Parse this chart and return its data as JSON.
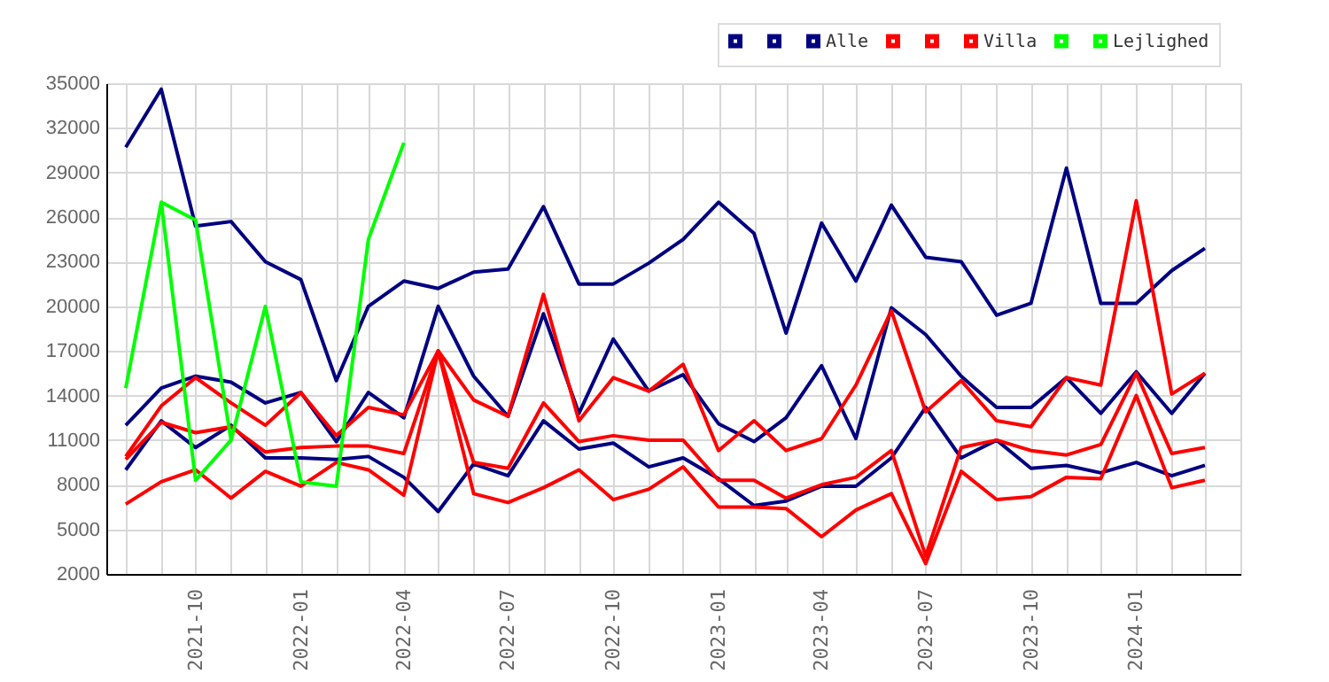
{
  "chart_data": {
    "type": "line",
    "x": [
      "2021-08",
      "2021-09",
      "2021-10",
      "2021-11",
      "2021-12",
      "2022-01",
      "2022-02",
      "2022-03",
      "2022-04",
      "2022-05",
      "2022-06",
      "2022-07",
      "2022-08",
      "2022-09",
      "2022-10",
      "2022-11",
      "2022-12",
      "2023-01",
      "2023-02",
      "2023-03",
      "2023-04",
      "2023-05",
      "2023-06",
      "2023-07",
      "2023-08",
      "2023-09",
      "2023-10",
      "2023-11",
      "2023-12",
      "2024-01",
      "2024-02",
      "2024-03"
    ],
    "xlim": [
      "2021-07-15",
      "2024-04-01"
    ],
    "xticks": [
      {
        "value": "2021-08",
        "label": null
      },
      {
        "value": "2021-09",
        "label": null
      },
      "2021-10",
      {
        "value": "2021-11",
        "label": null
      },
      {
        "value": "2021-12",
        "label": null
      },
      "2022-01",
      {
        "value": "2022-02",
        "label": null
      },
      {
        "value": "2022-03",
        "label": null
      },
      "2022-04",
      {
        "value": "2022-05",
        "label": null
      },
      {
        "value": "2022-06",
        "label": null
      },
      "2022-07",
      {
        "value": "2022-08",
        "label": null
      },
      {
        "value": "2022-09",
        "label": null
      },
      "2022-10",
      {
        "value": "2022-11",
        "label": null
      },
      {
        "value": "2022-12",
        "label": null
      },
      "2023-01",
      {
        "value": "2023-02",
        "label": null
      },
      {
        "value": "2023-03",
        "label": null
      },
      "2023-04",
      {
        "value": "2023-05",
        "label": null
      },
      {
        "value": "2023-06",
        "label": null
      },
      "2023-07",
      {
        "value": "2023-08",
        "label": null
      },
      {
        "value": "2023-09",
        "label": null
      },
      "2023-10",
      {
        "value": "2023-11",
        "label": null
      },
      {
        "value": "2023-12",
        "label": null
      },
      "2024-01",
      {
        "value": "2024-02",
        "label": null
      },
      {
        "value": "2024-03",
        "label": null
      }
    ],
    "ylim": [
      2000,
      35000
    ],
    "yticks": [
      2000,
      5000,
      8000,
      11000,
      14000,
      17000,
      20000,
      23000,
      26000,
      29000,
      32000,
      35000
    ],
    "grid": true,
    "legend": "top right",
    "marker": "none",
    "line_style": "solid",
    "series": [
      {
        "color": "#000080",
        "values": [
          30700,
          34600,
          25400,
          25700,
          23000,
          21800,
          15000,
          20000,
          21700,
          21200,
          22300,
          22500,
          26700,
          21500,
          21500,
          22900,
          24500,
          27000,
          24900,
          18200,
          25600,
          21700,
          26800,
          23300,
          23000,
          19400,
          20200,
          29300,
          20200,
          20200,
          22400,
          23900
        ]
      },
      {
        "color": "#000080",
        "values": [
          12000,
          14500,
          15300,
          14900,
          13500,
          14200,
          10900,
          14200,
          12500,
          20000,
          15300,
          12600,
          19500,
          12800,
          17800,
          14300,
          15400,
          12100,
          10900,
          12500,
          16000,
          11100,
          19900,
          18100,
          15300,
          13200,
          13200,
          15200,
          12800,
          15600,
          12800,
          15500
        ]
      },
      {
        "name": "Alle",
        "color": "#000080",
        "values": [
          9000,
          12300,
          10500,
          12000,
          9800,
          9800,
          9700,
          9900,
          8500,
          6200,
          9400,
          8600,
          12300,
          10400,
          10800,
          9200,
          9800,
          8400,
          6600,
          6900,
          7900,
          7900,
          9800,
          13200,
          9800,
          11000,
          9100,
          9300,
          8800,
          9500,
          8600,
          9300
        ]
      },
      {
        "color": "#ff0000",
        "values": [
          9900,
          13300,
          15200,
          13500,
          12000,
          14200,
          11300,
          13200,
          12700,
          17000,
          13700,
          12600,
          20800,
          12300,
          15200,
          14300,
          16100,
          10300,
          12300,
          10300,
          11100,
          14700,
          19700,
          12900,
          15000,
          12300,
          11900,
          15200,
          14700,
          27100,
          14100,
          15500
        ]
      },
      {
        "color": "#ff0000",
        "values": [
          9700,
          12200,
          11500,
          11900,
          10200,
          10500,
          10600,
          10600,
          10100,
          17000,
          9500,
          9100,
          13500,
          10900,
          11300,
          11000,
          11000,
          8300,
          8300,
          7100,
          8000,
          8500,
          10300,
          3200,
          10500,
          11000,
          10300,
          10000,
          10700,
          15500,
          10100,
          10500
        ]
      },
      {
        "name": "Villa",
        "color": "#ff0000",
        "values": [
          6700,
          8200,
          9000,
          7100,
          8900,
          7900,
          9500,
          9000,
          7300,
          17000,
          7400,
          6800,
          7800,
          9000,
          7000,
          7700,
          9200,
          6500,
          6500,
          6400,
          4500,
          6300,
          7400,
          2700,
          8900,
          7000,
          7200,
          8500,
          8400,
          14000,
          7800,
          8300
        ]
      },
      {
        "color": "#00ff00",
        "x": [
          "2021-08",
          "2021-09",
          "2021-10",
          "2021-11",
          "2021-12",
          "2022-01",
          "2022-02",
          "2022-03",
          "2022-04"
        ],
        "values": [
          14500,
          27000,
          8300,
          11000,
          20000,
          8200,
          7900,
          24500,
          31000
        ]
      },
      {
        "name": "Lejlighed",
        "color": "#00ff00",
        "x": [
          "2021-09",
          "2021-10",
          "2021-11"
        ],
        "values": [
          27000,
          25800,
          11000
        ]
      }
    ]
  }
}
